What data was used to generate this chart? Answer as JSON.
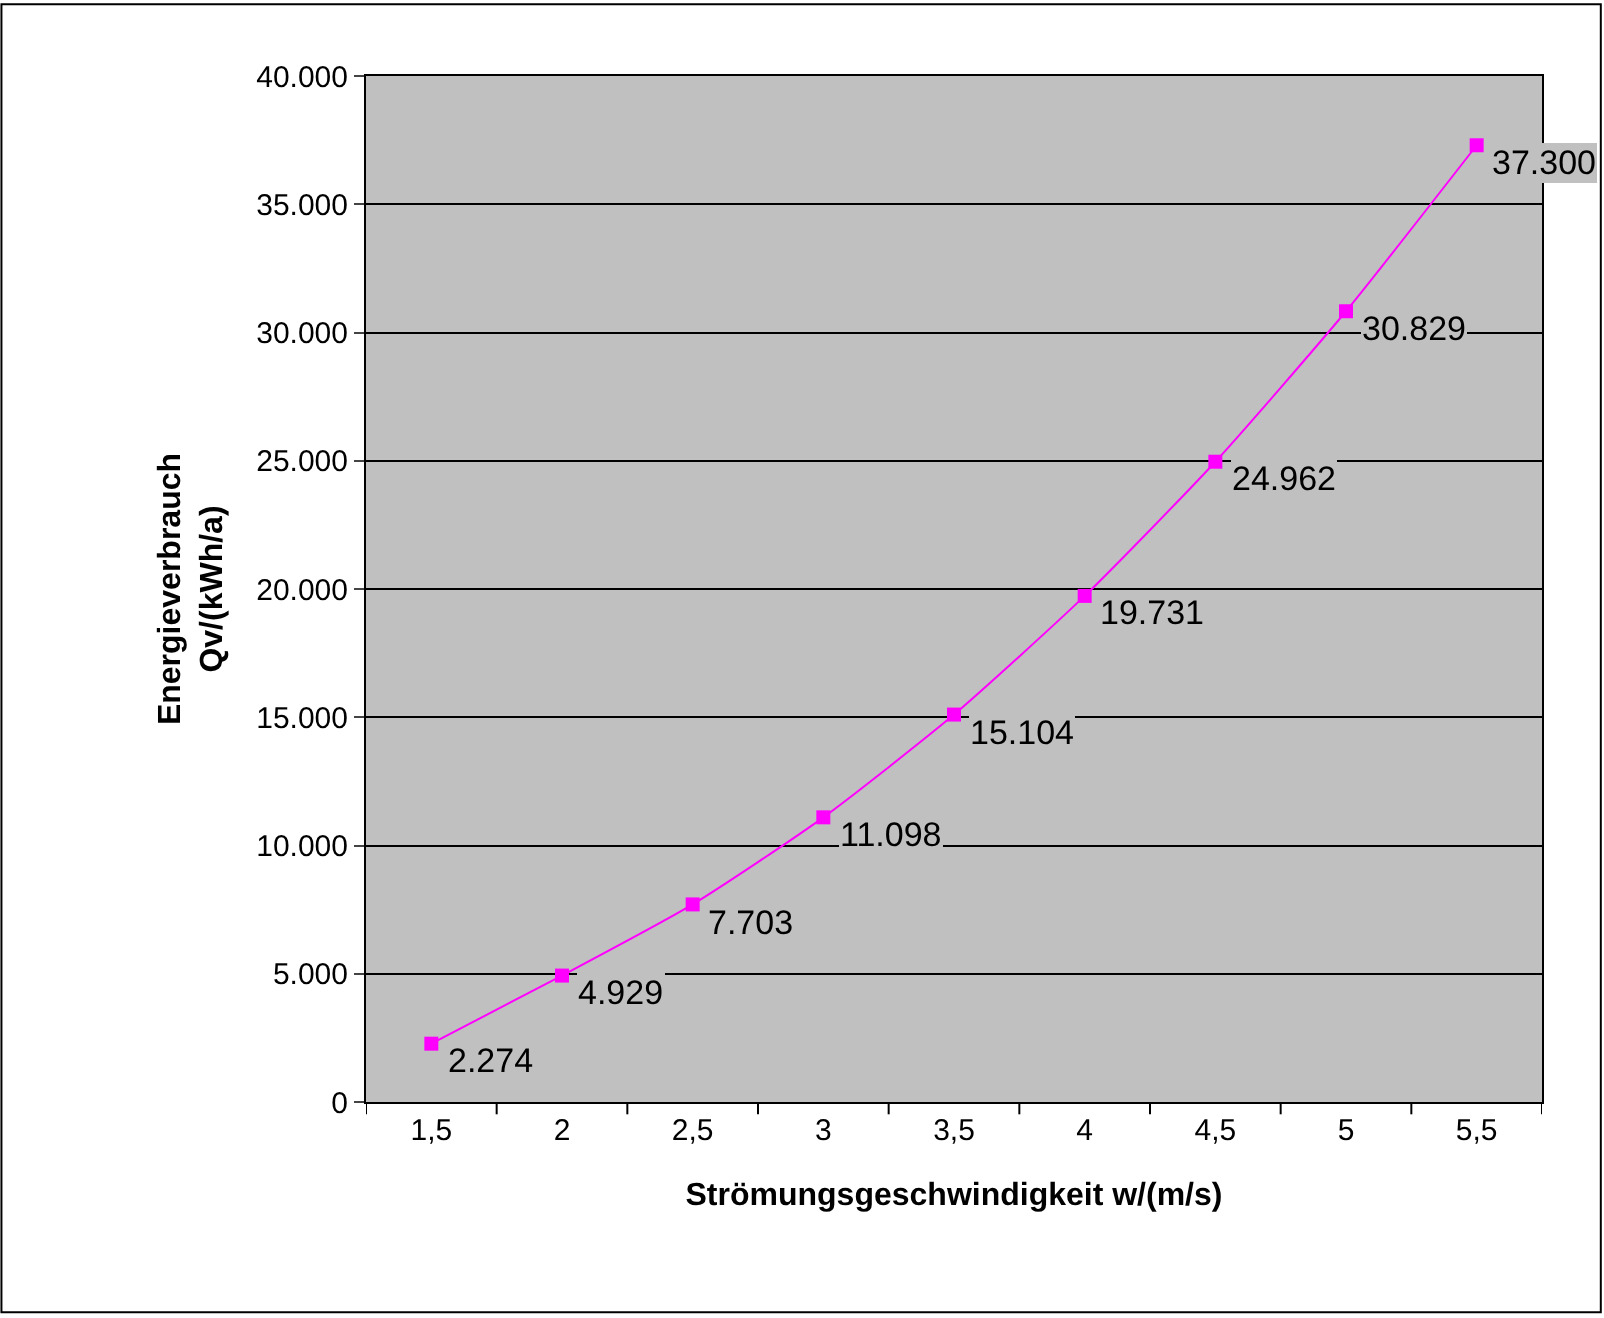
{
  "chart_data": {
    "type": "line",
    "xlabel": "Strömungsgeschwindigkeit w/(m/s)",
    "ylabel": "Energieverbrauch\nQv/(kWh/a)",
    "categories": [
      "1,5",
      "2",
      "2,5",
      "3",
      "3,5",
      "4",
      "4,5",
      "5",
      "5,5"
    ],
    "series": [
      {
        "color": "#ff00ff",
        "values": [
          2274,
          4929,
          7703,
          11098,
          15104,
          19731,
          24962,
          30829,
          37300
        ],
        "value_labels": [
          "2.274",
          "4.929",
          "7.703",
          "11.098",
          "15.104",
          "19.731",
          "24.962",
          "30.829",
          "37.300"
        ]
      }
    ],
    "ylim": [
      0,
      40000
    ],
    "yticks": [
      {
        "value": 0,
        "label": "0"
      },
      {
        "value": 5000,
        "label": "5.000"
      },
      {
        "value": 10000,
        "label": "10.000"
      },
      {
        "value": 15000,
        "label": "15.000"
      },
      {
        "value": 20000,
        "label": "20.000"
      },
      {
        "value": 25000,
        "label": "25.000"
      },
      {
        "value": 30000,
        "label": "30.000"
      },
      {
        "value": 35000,
        "label": "35.000"
      },
      {
        "value": 40000,
        "label": "40.000"
      }
    ],
    "grid": "y",
    "marker": "square",
    "line_style": "solid",
    "legend": false
  }
}
